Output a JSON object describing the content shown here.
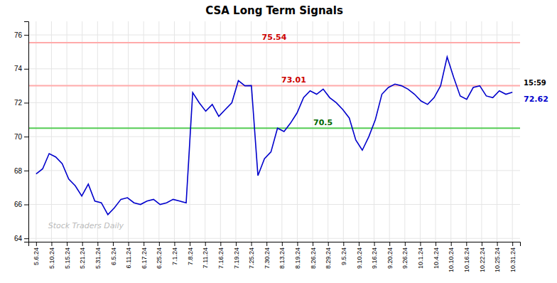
{
  "chart_data": {
    "type": "line",
    "title": "CSA Long Term Signals",
    "watermark": "Stock Traders Daily",
    "color": "#0000cc",
    "values": [
      67.8,
      68.1,
      69.0,
      68.8,
      68.4,
      67.5,
      67.1,
      66.5,
      67.2,
      66.2,
      66.1,
      65.4,
      65.8,
      66.3,
      66.4,
      66.1,
      66.0,
      66.2,
      66.3,
      66.0,
      66.1,
      66.3,
      66.2,
      66.1,
      72.6,
      72.0,
      71.5,
      71.9,
      71.2,
      71.6,
      72.0,
      73.3,
      73.0,
      73.01,
      67.7,
      68.7,
      69.1,
      70.5,
      70.3,
      70.8,
      71.4,
      72.3,
      72.7,
      72.5,
      72.8,
      72.3,
      72.0,
      71.6,
      71.1,
      69.8,
      69.2,
      70.0,
      71.0,
      72.5,
      72.9,
      73.1,
      73.0,
      72.8,
      72.5,
      72.1,
      71.9,
      72.3,
      73.0,
      74.7,
      73.5,
      72.4,
      72.2,
      72.9,
      73.0,
      72.4,
      72.3,
      72.7,
      72.5,
      72.62
    ],
    "xlim": [
      -0.5,
      31.5
    ],
    "xticks": [
      {
        "value": 0,
        "label": "5.6.24"
      },
      {
        "value": 1,
        "label": "5.10.24"
      },
      {
        "value": 2,
        "label": "5.15.24"
      },
      {
        "value": 3,
        "label": "5.21.24"
      },
      {
        "value": 4,
        "label": "5.31.24"
      },
      {
        "value": 5,
        "label": "6.5.24"
      },
      {
        "value": 6,
        "label": "6.11.24"
      },
      {
        "value": 7,
        "label": "6.17.24"
      },
      {
        "value": 8,
        "label": "6.25.24"
      },
      {
        "value": 9,
        "label": "7.1.24"
      },
      {
        "value": 10,
        "label": "7.8.24"
      },
      {
        "value": 11,
        "label": "7.11.24"
      },
      {
        "value": 12,
        "label": "7.16.24"
      },
      {
        "value": 13,
        "label": "7.19.24"
      },
      {
        "value": 14,
        "label": "7.25.24"
      },
      {
        "value": 15,
        "label": "7.30.24"
      },
      {
        "value": 16,
        "label": "8.13.24"
      },
      {
        "value": 17,
        "label": "8.19.24"
      },
      {
        "value": 18,
        "label": "8.26.24"
      },
      {
        "value": 19,
        "label": "8.29.24"
      },
      {
        "value": 20,
        "label": "9.5.24"
      },
      {
        "value": 21,
        "label": "9.10.24"
      },
      {
        "value": 22,
        "label": "9.16.24"
      },
      {
        "value": 23,
        "label": "9.20.24"
      },
      {
        "value": 24,
        "label": "9.26.24"
      },
      {
        "value": 25,
        "label": "10.1.24"
      },
      {
        "value": 26,
        "label": "10.4.24"
      },
      {
        "value": 27,
        "label": "10.10.24"
      },
      {
        "value": 28,
        "label": "10.16.24"
      },
      {
        "value": 29,
        "label": "10.22.24"
      },
      {
        "value": 30,
        "label": "10.25.24"
      },
      {
        "value": 31,
        "label": "10.31.24"
      }
    ],
    "ylim": [
      63.8,
      76.8
    ],
    "yticks": [
      64,
      66,
      68,
      70,
      72,
      74,
      76
    ],
    "grid": true,
    "reference_lines": [
      {
        "value": 75.54,
        "label": "75.54",
        "color": "#ffaaaa",
        "label_color": "#cc0000"
      },
      {
        "value": 73.01,
        "label": "73.01",
        "color": "#ffaaaa",
        "label_color": "#cc0000"
      },
      {
        "value": 70.5,
        "label": "70.5",
        "color": "#55cc55",
        "label_color": "#006600"
      }
    ],
    "annotations": [
      {
        "text": "15:59",
        "color": "#000000"
      },
      {
        "text": "72.62",
        "color": "#0000cc"
      }
    ]
  }
}
